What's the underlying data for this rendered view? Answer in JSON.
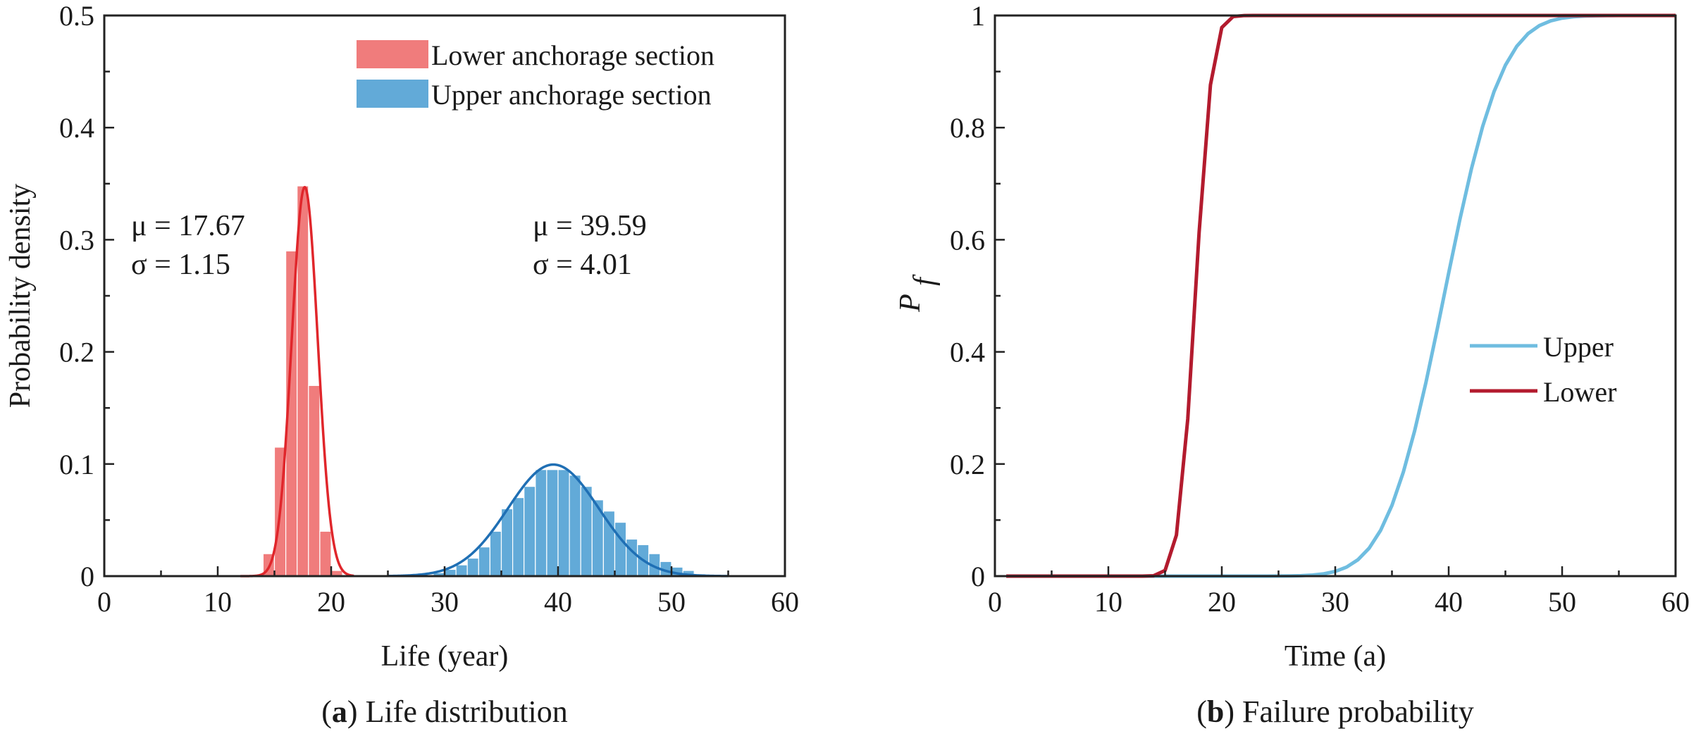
{
  "colors": {
    "lower_bar": "#f07c7c",
    "lower_curve": "#e0262b",
    "upper_bar": "#62aad8",
    "upper_curve": "#1f6fb4",
    "upper_line": "#6fbde0",
    "lower_line": "#b31b2e"
  },
  "chart_data": [
    {
      "type": "bar",
      "title": "Life distribution",
      "caption": {
        "letter": "a",
        "open": "(",
        "close": ")",
        "text": " Life distribution"
      },
      "xlabel": "Life (year)",
      "ylabel": "Probability density",
      "xlim": [
        0,
        60
      ],
      "ylim": [
        0,
        0.5
      ],
      "xticks": [
        "0",
        "10",
        "20",
        "30",
        "40",
        "50",
        "60"
      ],
      "yticks": [
        "0",
        "0.1",
        "0.2",
        "0.3",
        "0.4",
        "0.5"
      ],
      "legend": [
        "Lower anchorage section",
        "Upper anchorage section"
      ],
      "annotations": [
        {
          "mu_label": "μ = 17.67",
          "sigma_label": "σ = 1.15"
        },
        {
          "mu_label": "μ = 39.59",
          "sigma_label": "σ = 4.01"
        }
      ],
      "bar_width": 1,
      "series": [
        {
          "name": "Lower anchorage section",
          "mean": 17.67,
          "sd": 1.15,
          "x": [
            14.5,
            15.5,
            16.5,
            17.5,
            18.5,
            19.5,
            20.5
          ],
          "values": [
            0.02,
            0.115,
            0.29,
            0.348,
            0.17,
            0.04,
            0.005
          ]
        },
        {
          "name": "Upper anchorage section",
          "mean": 39.59,
          "sd": 4.01,
          "x": [
            29.5,
            30.5,
            31.5,
            32.5,
            33.5,
            34.5,
            35.5,
            36.5,
            37.5,
            38.5,
            39.5,
            40.5,
            41.5,
            42.5,
            43.5,
            44.5,
            45.5,
            46.5,
            47.5,
            48.5,
            49.5,
            50.5,
            51.5,
            52.5
          ],
          "values": [
            0.003,
            0.006,
            0.01,
            0.016,
            0.026,
            0.04,
            0.06,
            0.07,
            0.08,
            0.095,
            0.095,
            0.095,
            0.09,
            0.08,
            0.068,
            0.058,
            0.048,
            0.033,
            0.028,
            0.02,
            0.013,
            0.008,
            0.005,
            0.002
          ]
        }
      ]
    },
    {
      "type": "line",
      "title": "Failure probability",
      "caption": {
        "letter": "b",
        "open": "(",
        "close": ")",
        "text": " Failure probability"
      },
      "xlabel": "Time (a)",
      "ylabel": "P",
      "ylabel_sub": "f",
      "xlim": [
        0,
        60
      ],
      "ylim": [
        0,
        1
      ],
      "xticks": [
        "0",
        "10",
        "20",
        "30",
        "40",
        "50",
        "60"
      ],
      "yticks": [
        "0",
        "0.2",
        "0.4",
        "0.6",
        "0.8",
        "1"
      ],
      "legend": [
        "Upper",
        "Lower"
      ],
      "series": [
        {
          "name": "Upper",
          "start": 1,
          "end": 60,
          "mean": 39.59,
          "sd": 4.01
        },
        {
          "name": "Lower",
          "start": 1,
          "end": 60,
          "mean": 17.67,
          "sd": 1.15
        }
      ]
    }
  ]
}
